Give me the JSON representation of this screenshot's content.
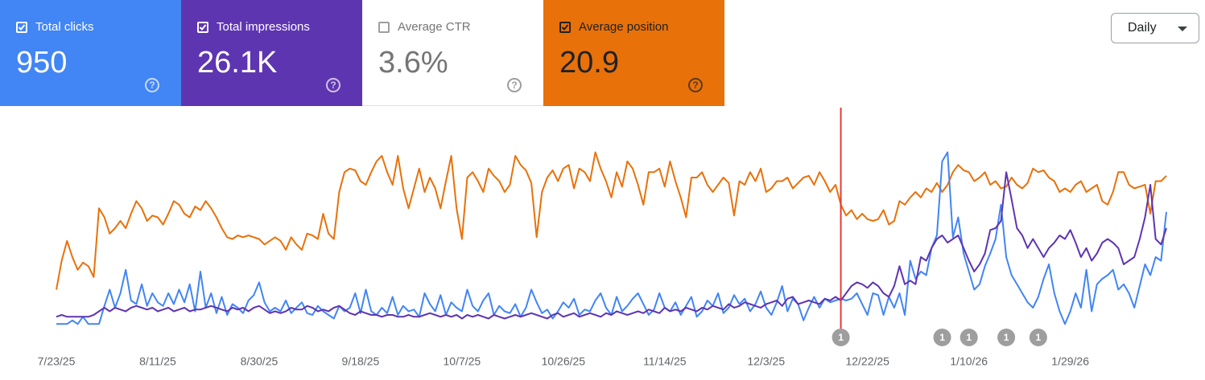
{
  "cards": [
    {
      "label": "Total clicks",
      "value": "950",
      "checked": true,
      "color": "#4285f4",
      "text_color": "#ffffff"
    },
    {
      "label": "Total impressions",
      "value": "26.1K",
      "checked": true,
      "color": "#5e35b1",
      "text_color": "#ffffff"
    },
    {
      "label": "Average CTR",
      "value": "3.6%",
      "checked": false,
      "color": "#ffffff",
      "text_color": "#757575"
    },
    {
      "label": "Average position",
      "value": "20.9",
      "checked": true,
      "color": "#e8710a",
      "text_color": "#202124"
    }
  ],
  "dropdown": {
    "label": "Daily"
  },
  "chart_data": {
    "type": "line",
    "categories": [
      "7/23/25",
      null,
      null,
      null,
      null,
      null,
      null,
      null,
      null,
      null,
      null,
      null,
      null,
      null,
      null,
      null,
      null,
      null,
      null,
      "8/11/25",
      null,
      null,
      null,
      null,
      null,
      null,
      null,
      null,
      null,
      null,
      null,
      null,
      null,
      null,
      null,
      null,
      null,
      null,
      "8/30/25",
      null,
      null,
      null,
      null,
      null,
      null,
      null,
      null,
      null,
      null,
      null,
      null,
      null,
      null,
      null,
      null,
      null,
      null,
      "9/18/25",
      null,
      null,
      null,
      null,
      null,
      null,
      null,
      null,
      null,
      null,
      null,
      null,
      null,
      null,
      null,
      null,
      null,
      null,
      "10/7/25",
      null,
      null,
      null,
      null,
      null,
      null,
      null,
      null,
      null,
      null,
      null,
      null,
      null,
      null,
      null,
      null,
      null,
      null,
      "10/26/25",
      null,
      null,
      null,
      null,
      null,
      null,
      null,
      null,
      null,
      null,
      null,
      null,
      null,
      null,
      null,
      null,
      null,
      null,
      "11/14/25",
      null,
      null,
      null,
      null,
      null,
      null,
      null,
      null,
      null,
      null,
      null,
      null,
      null,
      null,
      null,
      null,
      null,
      null,
      "12/3/25",
      null,
      null,
      null,
      null,
      null,
      null,
      null,
      null,
      null,
      null,
      null,
      null,
      null,
      null,
      null,
      null,
      null,
      null,
      "12/22/25",
      null,
      null,
      null,
      null,
      null,
      null,
      null,
      null,
      null,
      null,
      null,
      null,
      null,
      null,
      null,
      null,
      null,
      null,
      "1/10/26",
      null,
      null,
      null,
      null,
      null,
      null,
      null,
      null,
      null,
      null,
      null,
      null,
      null,
      null,
      null,
      null,
      null,
      null,
      "1/29/26",
      null,
      null,
      null,
      null,
      null,
      null,
      null,
      null,
      null,
      null,
      null,
      null,
      null,
      null,
      null,
      null,
      null,
      null
    ],
    "ylim": [
      0,
      100
    ],
    "series": [
      {
        "color": "#e8710a",
        "values": [
          22,
          38,
          49,
          40,
          33,
          37,
          35,
          29,
          67,
          62,
          53,
          56,
          60,
          56,
          64,
          71,
          67,
          60,
          63,
          62,
          58,
          64,
          71,
          69,
          64,
          62,
          68,
          66,
          71,
          67,
          62,
          56,
          51,
          50,
          52,
          51,
          52,
          51,
          50,
          47,
          49,
          51,
          49,
          44,
          51,
          47,
          44,
          53,
          52,
          50,
          64,
          53,
          50,
          76,
          87,
          89,
          88,
          82,
          80,
          87,
          93,
          96,
          87,
          80,
          96,
          78,
          67,
          78,
          89,
          76,
          84,
          78,
          67,
          82,
          96,
          67,
          50,
          84,
          87,
          82,
          76,
          89,
          85,
          82,
          76,
          80,
          96,
          91,
          88,
          81,
          51,
          76,
          84,
          88,
          82,
          89,
          91,
          78,
          89,
          87,
          82,
          98,
          89,
          82,
          73,
          87,
          79,
          93,
          89,
          80,
          69,
          87,
          87,
          89,
          79,
          93,
          82,
          73,
          62,
          84,
          84,
          87,
          80,
          76,
          80,
          84,
          81,
          63,
          82,
          80,
          87,
          82,
          89,
          76,
          78,
          82,
          82,
          84,
          78,
          81,
          84,
          85,
          80,
          87,
          82,
          76,
          80,
          69,
          63,
          66,
          61,
          64,
          61,
          60,
          61,
          66,
          58,
          60,
          71,
          69,
          73,
          76,
          73,
          78,
          76,
          81,
          76,
          80,
          87,
          91,
          88,
          87,
          82,
          84,
          87,
          80,
          82,
          78,
          79,
          84,
          80,
          78,
          81,
          89,
          87,
          88,
          84,
          82,
          76,
          78,
          76,
          80,
          82,
          76,
          78,
          80,
          71,
          69,
          76,
          87,
          87,
          80,
          78,
          79,
          80,
          64,
          82,
          82,
          85
        ]
      },
      {
        "color": "#4285f4",
        "values": [
          3,
          3,
          3,
          5,
          3,
          7,
          3,
          3,
          3,
          13,
          22,
          12,
          20,
          33,
          16,
          14,
          25,
          13,
          20,
          15,
          13,
          20,
          14,
          22,
          15,
          25,
          10,
          32,
          12,
          20,
          9,
          18,
          8,
          14,
          12,
          9,
          16,
          19,
          26,
          15,
          10,
          12,
          10,
          16,
          9,
          12,
          15,
          9,
          8,
          13,
          10,
          8,
          6,
          13,
          10,
          12,
          20,
          9,
          22,
          10,
          8,
          12,
          9,
          18,
          8,
          13,
          10,
          11,
          7,
          20,
          14,
          10,
          19,
          8,
          15,
          12,
          10,
          22,
          13,
          10,
          16,
          20,
          8,
          13,
          10,
          9,
          14,
          7,
          12,
          22,
          15,
          9,
          11,
          6,
          10,
          15,
          12,
          17,
          8,
          11,
          10,
          16,
          20,
          12,
          8,
          18,
          10,
          13,
          17,
          20,
          14,
          8,
          11,
          20,
          12,
          10,
          15,
          8,
          13,
          18,
          7,
          10,
          16,
          13,
          20,
          9,
          12,
          19,
          14,
          17,
          10,
          14,
          21,
          12,
          8,
          15,
          24,
          10,
          17,
          14,
          5,
          12,
          18,
          12,
          17,
          15,
          16,
          17,
          16,
          17,
          20,
          14,
          8,
          20,
          19,
          8,
          18,
          12,
          20,
          8,
          38,
          28,
          32,
          30,
          45,
          52,
          93,
          98,
          51,
          62,
          42,
          32,
          22,
          25,
          35,
          42,
          50,
          69,
          40,
          30,
          25,
          20,
          15,
          12,
          18,
          28,
          36,
          20,
          10,
          3,
          10,
          20,
          12,
          33,
          10,
          25,
          28,
          30,
          33,
          22,
          25,
          20,
          12,
          24,
          36,
          30,
          40,
          38,
          65
        ]
      },
      {
        "color": "#5e35b1",
        "values": [
          7,
          8,
          7,
          7,
          7,
          7,
          7,
          8,
          10,
          12,
          10,
          12,
          11,
          10,
          12,
          13,
          12,
          11,
          12,
          10,
          11,
          12,
          10,
          11,
          12,
          10,
          11,
          11,
          12,
          13,
          12,
          11,
          10,
          12,
          11,
          12,
          10,
          12,
          13,
          11,
          9,
          10,
          9,
          10,
          12,
          11,
          11,
          13,
          12,
          10,
          11,
          10,
          12,
          13,
          11,
          9,
          8,
          10,
          9,
          8,
          8,
          7,
          8,
          8,
          7,
          7,
          8,
          7,
          7,
          8,
          9,
          8,
          7,
          8,
          7,
          8,
          6,
          8,
          7,
          8,
          7,
          6,
          8,
          7,
          6,
          7,
          8,
          7,
          8,
          9,
          8,
          7,
          6,
          8,
          9,
          7,
          8,
          9,
          7,
          8,
          9,
          8,
          7,
          9,
          8,
          10,
          9,
          8,
          9,
          10,
          9,
          11,
          10,
          9,
          12,
          10,
          11,
          10,
          12,
          11,
          10,
          12,
          11,
          13,
          12,
          11,
          14,
          12,
          13,
          15,
          14,
          13,
          12,
          14,
          15,
          16,
          13,
          17,
          18,
          14,
          15,
          16,
          15,
          14,
          17,
          16,
          18,
          16,
          20,
          24,
          26,
          25,
          23,
          26,
          24,
          20,
          18,
          24,
          35,
          25,
          27,
          25,
          40,
          38,
          45,
          50,
          52,
          48,
          50,
          52,
          45,
          38,
          32,
          36,
          42,
          55,
          56,
          60,
          87,
          72,
          56,
          52,
          45,
          50,
          45,
          40,
          45,
          48,
          52,
          50,
          55,
          48,
          40,
          45,
          38,
          42,
          48,
          50,
          48,
          45,
          36,
          38,
          40,
          50,
          62,
          80,
          50,
          47,
          56
        ]
      }
    ],
    "event_line": {
      "index": 147,
      "color": "#e53935"
    },
    "annotations": [
      {
        "index": 147,
        "label": "1"
      },
      {
        "index": 166,
        "label": "1"
      },
      {
        "index": 171,
        "label": "1"
      },
      {
        "index": 178,
        "label": "1"
      },
      {
        "index": 184,
        "label": "1"
      }
    ]
  }
}
